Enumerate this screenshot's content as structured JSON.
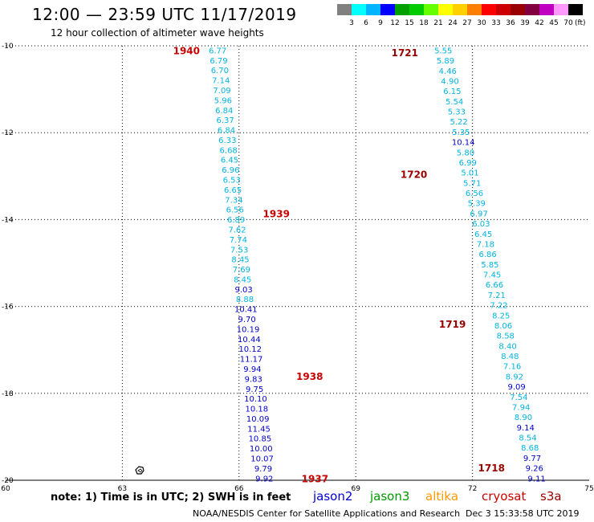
{
  "header": {
    "title": "12:00 — 23:59 UTC 11/17/2019",
    "subtitle": "12 hour collection of altimeter wave heights"
  },
  "colorbar": {
    "unit": "(ft)",
    "colors": [
      "#808080",
      "#00ffff",
      "#00b4ff",
      "#0000ff",
      "#00a000",
      "#00cc00",
      "#66ff00",
      "#ffff00",
      "#ffd000",
      "#ff8000",
      "#ff0000",
      "#cc0000",
      "#990000",
      "#800040",
      "#c000c0",
      "#ff99ff",
      "#000000"
    ],
    "labels": [
      "3",
      "6",
      "9",
      "12",
      "15",
      "18",
      "21",
      "24",
      "27",
      "30",
      "33",
      "36",
      "39",
      "42",
      "45",
      "70"
    ]
  },
  "map": {
    "lon_min": 60,
    "lon_max": 75,
    "lat_min": -20,
    "lat_max": -10,
    "lon_labels": [
      "60",
      "63",
      "66",
      "69",
      "72",
      "75"
    ],
    "lat_labels": [
      "-10",
      "-12",
      "-14",
      "-16",
      "-18",
      "-20"
    ],
    "legend_note": "note: 1) Time is in UTC; 2) SWH is in feet",
    "satellites": [
      {
        "name": "jason2",
        "color": "#0000cc"
      },
      {
        "name": "jason3",
        "color": "#009900"
      },
      {
        "name": "altika",
        "color": "#ff9900"
      },
      {
        "name": "cryosat",
        "color": "#cc0000"
      },
      {
        "name": "s3a",
        "color": "#990000"
      }
    ],
    "tracks": [
      {
        "satellite": "cryosat",
        "lon_start": 65.45,
        "lon_end": 66.65,
        "lat_start": -10.1,
        "lat_end": -19.95,
        "values": [
          "6.77",
          "6.79",
          "6.70",
          "7.14",
          "7.09",
          "5.96",
          "6.84",
          "6.37",
          "6.84",
          "6.33",
          "6.68",
          "6.45",
          "6.96",
          "6.53",
          "6.65",
          "7.34",
          "6.56",
          "6.89",
          "7.62",
          "7.74",
          "7.53",
          "8.45",
          "7.69",
          "8.45",
          "9.03",
          "8.88",
          "10.41",
          "9.70",
          "10.19",
          "10.44",
          "10.12",
          "11.17",
          "9.94",
          "9.83",
          "9.75",
          "10.10",
          "10.18",
          "10.09",
          "11.45",
          "10.85",
          "10.00",
          "10.07",
          "9.79",
          "9.92"
        ],
        "times": [
          {
            "label": "1940",
            "lat": -10.1,
            "offset": -0.25
          },
          {
            "label": "1939",
            "lat": -13.85,
            "offset": 0.5
          },
          {
            "label": "1938",
            "lat": -17.6,
            "offset": 0.9
          },
          {
            "label": "1937",
            "lat": -19.95,
            "offset": 0.75
          }
        ]
      },
      {
        "satellite": "s3a",
        "lon_start": 71.25,
        "lon_end": 73.65,
        "lat_start": -10.1,
        "lat_end": -19.95,
        "values": [
          "5.55",
          "5.89",
          "4.46",
          "4.90",
          "6.15",
          "5.54",
          "5.33",
          "5.22",
          "5.35",
          "10.14",
          "5.80",
          "6.99",
          "5.01",
          "5.71",
          "6.56",
          "5.39",
          "6.97",
          "6.03",
          "6.45",
          "7.18",
          "6.86",
          "5.85",
          "7.45",
          "6.66",
          "7.21",
          "7.22",
          "8.25",
          "8.06",
          "8.58",
          "8.40",
          "8.48",
          "7.16",
          "8.92",
          "9.09",
          "7.54",
          "7.94",
          "8.90",
          "9.14",
          "8.54",
          "8.68",
          "9.77",
          "9.26",
          "9.11"
        ],
        "times": [
          {
            "label": "1721",
            "lat": -10.15,
            "offset": -0.45
          },
          {
            "label": "1720",
            "lat": -12.95,
            "offset": -0.9
          },
          {
            "label": "1719",
            "lat": -16.4,
            "offset": -0.75
          },
          {
            "label": "1718",
            "lat": -19.7,
            "offset": -0.55
          }
        ]
      }
    ]
  },
  "footer": {
    "org": "NOAA/NESDIS Center for Satellite Applications and Research",
    "timestamp": "Dec  3 15:33:58 UTC 2019"
  }
}
